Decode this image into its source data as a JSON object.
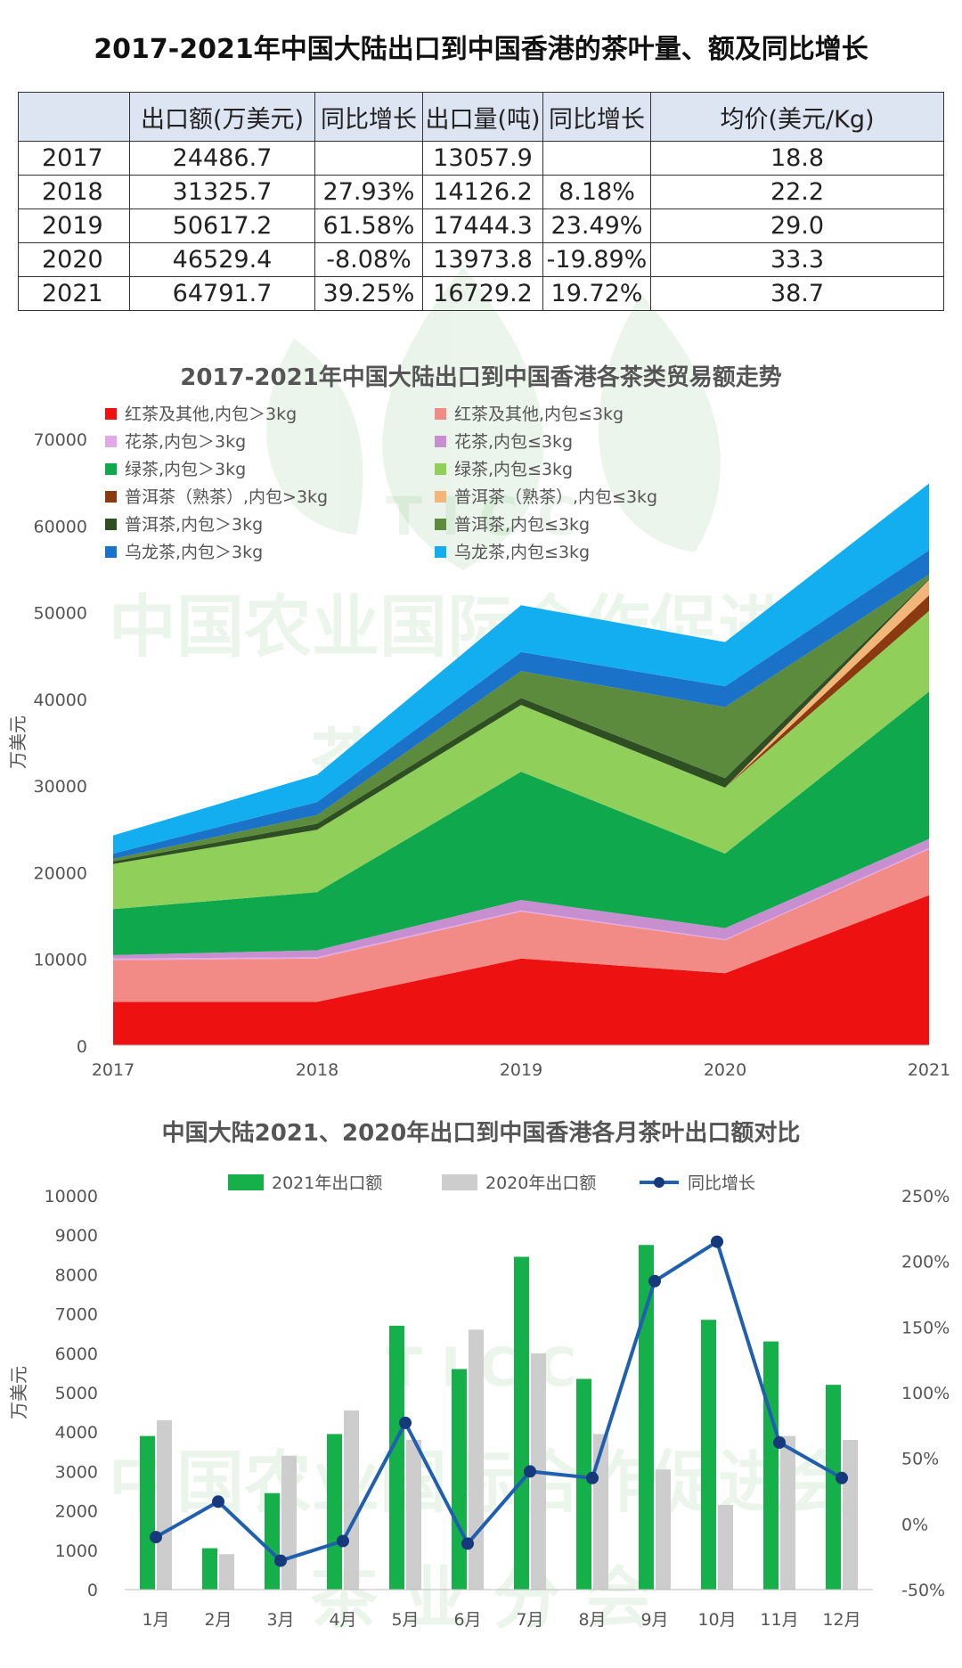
{
  "page": {
    "title": "2017-2021年中国大陆出口到中国香港的茶叶量、额及同比增长",
    "watermark": {
      "letters": "T I C C",
      "line1": "中国农业国际合作促进会",
      "line2": "茶 业 分 会"
    }
  },
  "table": {
    "headers": [
      "",
      "出口额(万美元)",
      "同比增长",
      "出口量(吨)",
      "同比增长",
      "均价(美元/Kg)"
    ],
    "rows": [
      [
        "2017",
        "24486.7",
        "",
        "13057.9",
        "",
        "18.8"
      ],
      [
        "2018",
        "31325.7",
        "27.93%",
        "14126.2",
        "8.18%",
        "22.2"
      ],
      [
        "2019",
        "50617.2",
        "61.58%",
        "17444.3",
        "23.49%",
        "29.0"
      ],
      [
        "2020",
        "46529.4",
        "-8.08%",
        "13973.8",
        "-19.89%",
        "33.3"
      ],
      [
        "2021",
        "64791.7",
        "39.25%",
        "16729.2",
        "19.72%",
        "38.7"
      ]
    ]
  },
  "chart_data": [
    {
      "type": "area",
      "stacked": true,
      "title": "2017-2021年中国大陆出口到中国香港各茶类贸易额走势",
      "ylabel": "万美元",
      "ylim": [
        0,
        70000
      ],
      "yticks": [
        "0",
        "10000",
        "20000",
        "30000",
        "40000",
        "50000",
        "60000",
        "70000"
      ],
      "x": [
        "2017",
        "2018",
        "2019",
        "2020",
        "2021"
      ],
      "legend_position": "top-left",
      "series": [
        {
          "name": "红茶及其他,内包＞3kg",
          "color": "#ee1111",
          "values": [
            5000,
            5000,
            10000,
            8300,
            17300
          ]
        },
        {
          "name": "红茶及其他,内包≤3kg",
          "color": "#f28b85",
          "values": [
            4800,
            5000,
            5400,
            3800,
            5300
          ]
        },
        {
          "name": "花茶,内包＞3kg",
          "color": "#e3a8e6",
          "values": [
            200,
            150,
            150,
            100,
            150
          ]
        },
        {
          "name": "花茶,内包≤3kg",
          "color": "#c78fd0",
          "values": [
            400,
            800,
            1200,
            1300,
            1050
          ]
        },
        {
          "name": "绿茶,内包＞3kg",
          "color": "#0fa84c",
          "values": [
            5300,
            6700,
            14800,
            8600,
            17000
          ]
        },
        {
          "name": "绿茶,内包≤3kg",
          "color": "#8fcf5a",
          "values": [
            5200,
            7200,
            7700,
            7600,
            9300
          ]
        },
        {
          "name": "普洱茶（熟茶）,内包>3kg",
          "color": "#8b3a10",
          "values": [
            0,
            0,
            0,
            0,
            1800
          ]
        },
        {
          "name": "普洱茶（熟茶）,内包≤3kg",
          "color": "#f2b57a",
          "values": [
            0,
            0,
            0,
            0,
            1800
          ]
        },
        {
          "name": "普洱茶,内包＞3kg",
          "color": "#2d4f22",
          "values": [
            300,
            700,
            800,
            1100,
            100
          ]
        },
        {
          "name": "普洱茶,内包≤3kg",
          "color": "#5d8b3e",
          "values": [
            300,
            1000,
            3100,
            8200,
            500
          ]
        },
        {
          "name": "乌龙茶,内包＞3kg",
          "color": "#1a73c8",
          "values": [
            600,
            1500,
            2200,
            2400,
            2800
          ]
        },
        {
          "name": "乌龙茶,内包≤3kg",
          "color": "#13aef0",
          "values": [
            2100,
            3150,
            5400,
            5100,
            7700
          ]
        }
      ]
    },
    {
      "type": "bar",
      "title": "中国大陆2021、2020年出口到中国香港各月茶叶出口额对比",
      "ylabel": "万美元",
      "ylim": [
        0,
        10000
      ],
      "yticks": [
        "0",
        "1000",
        "2000",
        "3000",
        "4000",
        "5000",
        "6000",
        "7000",
        "8000",
        "9000",
        "10000"
      ],
      "y2lim": [
        -50,
        250
      ],
      "y2ticks": [
        "-50%",
        "0%",
        "50%",
        "100%",
        "150%",
        "200%",
        "250%"
      ],
      "categories": [
        "1月",
        "2月",
        "3月",
        "4月",
        "5月",
        "6月",
        "7月",
        "8月",
        "9月",
        "10月",
        "11月",
        "12月"
      ],
      "legend_position": "top",
      "series": [
        {
          "name": "2021年出口额",
          "kind": "bar",
          "color": "#16b04a",
          "values": [
            3900,
            1050,
            2450,
            3950,
            6700,
            5600,
            8450,
            5350,
            8750,
            6850,
            6300,
            5200
          ]
        },
        {
          "name": "2020年出口额",
          "kind": "bar",
          "color": "#cdcdcd",
          "values": [
            4300,
            900,
            3400,
            4550,
            3800,
            6600,
            6000,
            3950,
            3050,
            2150,
            3900,
            3800
          ]
        },
        {
          "name": "同比增长",
          "kind": "line",
          "axis": "right",
          "color": "#1f5fae",
          "values": [
            -10,
            17,
            -28,
            -13,
            77,
            -15,
            40,
            35,
            185,
            215,
            62,
            35
          ]
        }
      ]
    }
  ]
}
